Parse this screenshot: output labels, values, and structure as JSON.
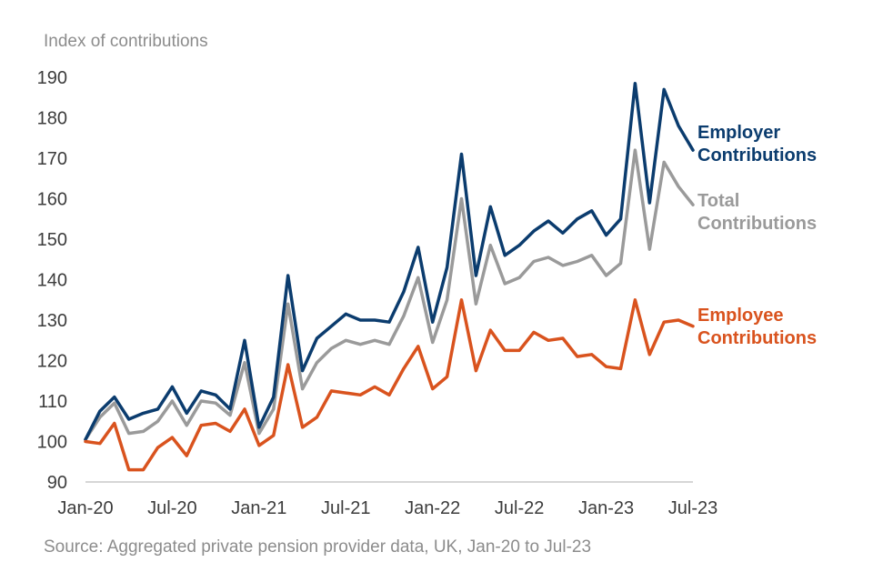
{
  "chart_data": {
    "type": "line",
    "title": "",
    "ylabel": "Index of contributions",
    "xlabel": "",
    "source": "Source: Aggregated private pension provider data, UK, Jan-20 to Jul-23",
    "ylim": [
      90,
      190
    ],
    "yticks": [
      90,
      100,
      110,
      120,
      130,
      140,
      150,
      160,
      170,
      180,
      190
    ],
    "xtick_labels": [
      "Jan-20",
      "Jul-20",
      "Jan-21",
      "Jul-21",
      "Jan-22",
      "Jul-22",
      "Jan-23",
      "Jul-23"
    ],
    "xtick_index": [
      0,
      6,
      12,
      18,
      24,
      30,
      36,
      42
    ],
    "n_points": 43,
    "series": [
      {
        "name": "Total Contributions",
        "legend_line1": "Total",
        "legend_line2": "Contributions",
        "color": "#9a9a9a",
        "values": [
          100.5,
          106,
          109.5,
          102,
          102.5,
          105,
          110,
          104,
          110,
          109.5,
          106.5,
          119.5,
          102,
          108,
          134,
          113,
          119.5,
          123,
          125,
          124,
          125,
          124,
          131,
          140.5,
          124.5,
          135,
          160,
          134,
          148.5,
          139,
          140.5,
          144.5,
          145.5,
          143.5,
          144.5,
          146,
          141,
          144,
          172,
          147.5,
          169,
          163,
          158.5
        ]
      },
      {
        "name": "Employer Contributions",
        "legend_line1": "Employer",
        "legend_line2": "Contributions",
        "color": "#0b3c6e",
        "values": [
          100.5,
          107.5,
          111,
          105.5,
          107,
          108,
          113.5,
          107,
          112.5,
          111.5,
          108,
          125,
          103.5,
          111,
          141,
          117.5,
          125.5,
          128.5,
          131.5,
          130,
          130,
          129.5,
          137,
          148,
          129.5,
          143,
          171,
          141,
          158,
          146,
          148.5,
          152,
          154.5,
          151.5,
          155,
          157,
          151,
          155,
          188.5,
          159,
          187,
          178,
          172
        ]
      },
      {
        "name": "Employee Contributions",
        "legend_line1": "Employee",
        "legend_line2": "Contributions",
        "color": "#d9531e",
        "values": [
          100,
          99.5,
          104.5,
          93,
          93,
          98.5,
          101,
          96.5,
          104,
          104.5,
          102.5,
          108,
          99,
          101.5,
          119,
          103.5,
          106,
          112.5,
          112,
          111.5,
          113.5,
          111.5,
          118,
          123.5,
          113,
          116,
          135,
          117.5,
          127.5,
          122.5,
          122.5,
          127,
          125,
          125.5,
          121,
          121.5,
          118.5,
          118,
          135,
          121.5,
          129.5,
          130,
          128.5
        ]
      }
    ]
  }
}
